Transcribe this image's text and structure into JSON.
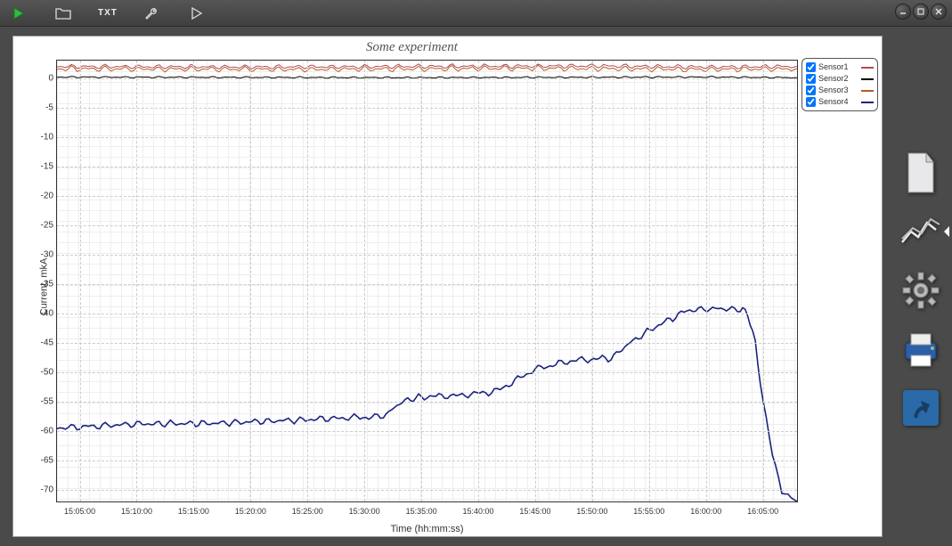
{
  "window": {
    "app_logo_color": "#2fbf3f"
  },
  "toolbar": {
    "items": [
      {
        "name": "app-logo-icon"
      },
      {
        "name": "open-folder-icon"
      },
      {
        "name": "txt-export-icon",
        "label": "TXT"
      },
      {
        "name": "settings-wrench-icon"
      },
      {
        "name": "run-play-icon"
      }
    ]
  },
  "chart": {
    "title": "Some experiment",
    "xlabel": "Time (hh:mm:ss)",
    "ylabel": "Current, mkA",
    "type": "line",
    "background_color": "#ffffff",
    "grid_color_major": "#cccccc",
    "grid_color_minor": "#eeeeee",
    "axis_color": "#333333",
    "title_fontsize": 15,
    "label_fontsize": 11,
    "tick_fontsize": 10,
    "ylim": [
      -72,
      3
    ],
    "yticks": [
      0,
      -5,
      -10,
      -15,
      -20,
      -25,
      -30,
      -35,
      -40,
      -45,
      -50,
      -55,
      -60,
      -65,
      -70
    ],
    "xlim_sec": [
      54180,
      58080
    ],
    "xticks_labels": [
      "15:05:00",
      "15:10:00",
      "15:15:00",
      "15:20:00",
      "15:25:00",
      "15:30:00",
      "15:35:00",
      "15:40:00",
      "15:45:00",
      "15:50:00",
      "15:55:00",
      "16:00:00",
      "16:05:00"
    ],
    "xticks_sec": [
      54300,
      54600,
      54900,
      55200,
      55500,
      55800,
      56100,
      56400,
      56700,
      57000,
      57300,
      57600,
      57900
    ],
    "legend": [
      {
        "label": "Sensor1",
        "color": "#b44a52",
        "checked": true
      },
      {
        "label": "Sensor2",
        "color": "#000000",
        "checked": true
      },
      {
        "label": "Sensor3",
        "color": "#b85a2a",
        "checked": true
      },
      {
        "label": "Sensor4",
        "color": "#1a237e",
        "checked": true
      }
    ],
    "series": {
      "sensor1": {
        "color": "#b44a52",
        "line_width": 1,
        "points": [
          [
            54180,
            2.0
          ],
          [
            55200,
            1.9
          ],
          [
            56100,
            2.0
          ],
          [
            57000,
            2.1
          ],
          [
            57600,
            1.9
          ],
          [
            58080,
            2.0
          ]
        ],
        "noise": 0.4
      },
      "sensor2": {
        "color": "#000000",
        "line_width": 1,
        "points": [
          [
            54180,
            0.2
          ],
          [
            56000,
            0.1
          ],
          [
            57600,
            0.2
          ],
          [
            58080,
            0.1
          ]
        ],
        "noise": 0.15
      },
      "sensor3": {
        "color": "#b85a2a",
        "line_width": 1,
        "points": [
          [
            54180,
            1.6
          ],
          [
            55500,
            1.5
          ],
          [
            56700,
            1.7
          ],
          [
            57600,
            1.5
          ],
          [
            58080,
            1.6
          ]
        ],
        "noise": 0.5
      },
      "sensor4": {
        "color": "#1a237e",
        "line_width": 1.6,
        "points": [
          [
            54180,
            -59.5
          ],
          [
            54600,
            -58.8
          ],
          [
            55000,
            -58.7
          ],
          [
            55400,
            -58.2
          ],
          [
            55700,
            -57.8
          ],
          [
            55900,
            -57.5
          ],
          [
            56000,
            -55.0
          ],
          [
            56100,
            -54.2
          ],
          [
            56300,
            -54.0
          ],
          [
            56500,
            -53.2
          ],
          [
            56700,
            -49.5
          ],
          [
            56900,
            -48.0
          ],
          [
            57100,
            -47.6
          ],
          [
            57200,
            -45.0
          ],
          [
            57350,
            -42.0
          ],
          [
            57500,
            -39.5
          ],
          [
            57650,
            -39.2
          ],
          [
            57780,
            -39.3
          ],
          [
            57820,
            -40.0
          ],
          [
            57860,
            -45.0
          ],
          [
            57900,
            -55.0
          ],
          [
            57950,
            -64.0
          ],
          [
            58000,
            -70.0
          ],
          [
            58080,
            -72.0
          ]
        ],
        "noise": 0.6
      }
    }
  },
  "right_rail": [
    {
      "name": "file-page-icon",
      "active": false
    },
    {
      "name": "line-chart-icon",
      "active": true
    },
    {
      "name": "gear-settings-icon",
      "active": false
    },
    {
      "name": "print-icon",
      "active": false
    },
    {
      "name": "exit-run-icon",
      "active": false
    }
  ]
}
